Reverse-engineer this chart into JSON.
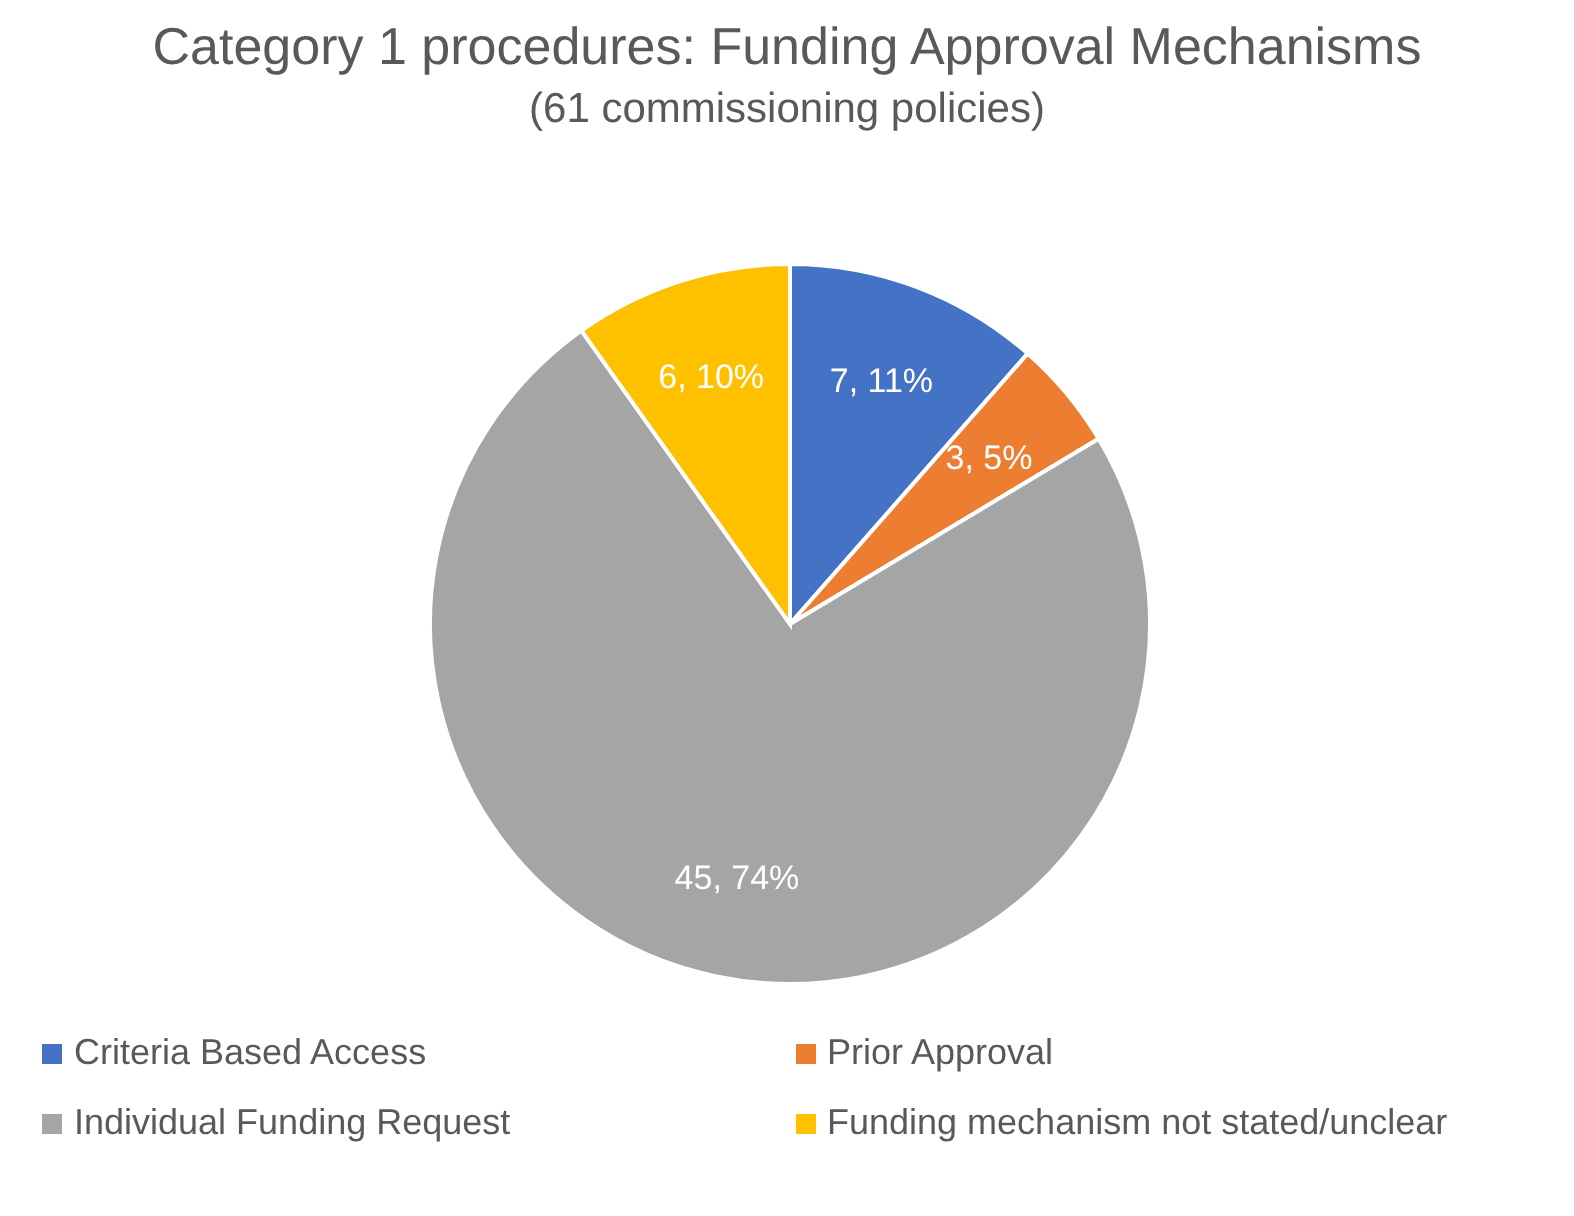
{
  "chart_data": {
    "type": "pie",
    "title": "Category 1 procedures: Funding Approval Mechanisms",
    "subtitle": "(61 commissioning policies)",
    "categories": [
      "Criteria Based Access",
      "Prior Approval",
      "Individual Funding Request",
      "Funding mechanism not stated/unclear"
    ],
    "values": [
      7,
      3,
      45,
      6
    ],
    "colors": [
      "#4472c4",
      "#ed7d31",
      "#a5a5a5",
      "#ffc000"
    ],
    "value_labels": [
      "7, 11%",
      "3, 5%",
      "45, 74%",
      "6, 10%"
    ],
    "legend": "bottom"
  }
}
